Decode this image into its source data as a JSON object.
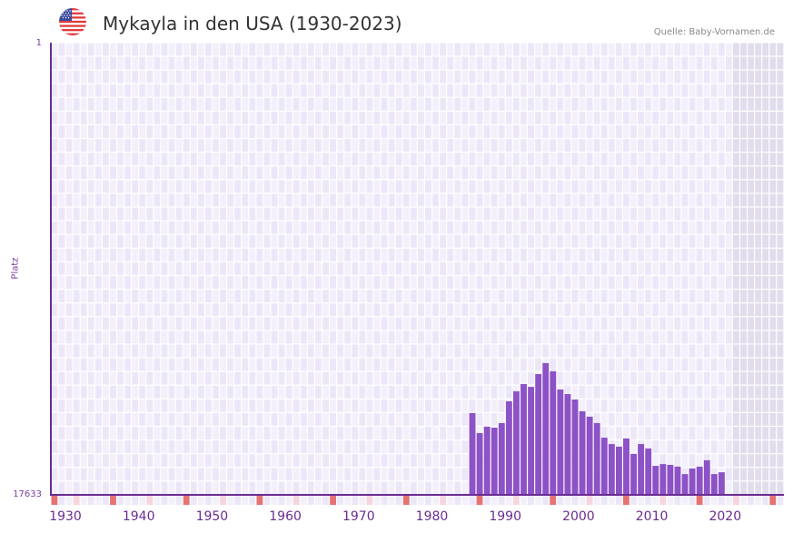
{
  "header": {
    "title": "Mykayla in den USA (1930-2023)",
    "source": "Quelle: Baby-Vornamen.de",
    "flag_icon": "us-flag-icon"
  },
  "colors": {
    "bar": "#8c52c6",
    "axis": "#6a2c91",
    "grid_bg_a": "#f3f0fb",
    "grid_bg_b": "#ece7f8",
    "future_bg": "#e2dded",
    "decade_marker": "#e57373",
    "half_decade_marker": "#f6d5de",
    "label": "#6a2c91"
  },
  "chart_data": {
    "type": "bar",
    "title": "Mykayla in den USA (1930-2023)",
    "xlabel": "",
    "ylabel": "Platz",
    "y_inverted": true,
    "ylim": [
      17633,
      1
    ],
    "y_ticks": [
      "1",
      "17633"
    ],
    "x_ticks": [
      "1930",
      "1940",
      "1950",
      "1960",
      "1970",
      "1980",
      "1990",
      "2000",
      "2010",
      "2020"
    ],
    "xlim": [
      1930,
      2030
    ],
    "grid": true,
    "legend": null,
    "categories": [
      1987,
      1988,
      1989,
      1990,
      1991,
      1992,
      1993,
      1994,
      1995,
      1996,
      1997,
      1998,
      1999,
      2000,
      2001,
      2002,
      2003,
      2004,
      2005,
      2006,
      2007,
      2008,
      2009,
      2010,
      2011,
      2012,
      2013,
      2014,
      2015,
      2016,
      2017,
      2018,
      2019,
      2020,
      2021
    ],
    "values": [
      3190,
      2410,
      2660,
      2620,
      2800,
      3650,
      4040,
      4320,
      4210,
      4710,
      5140,
      4820,
      4110,
      3930,
      3720,
      3260,
      3050,
      2800,
      2230,
      1980,
      1880,
      2200,
      1600,
      1980,
      1810,
      1130,
      1200,
      1170,
      1100,
      810,
      1030,
      1100,
      1350,
      810,
      880
    ],
    "value_meaning": "bar height (higher = better rank); approximate rank = 17633 - value",
    "approx_ranks": [
      14443,
      15223,
      14973,
      15013,
      14833,
      13983,
      13593,
      13313,
      13423,
      12923,
      12493,
      12813,
      13523,
      13703,
      13913,
      14373,
      14583,
      14833,
      15403,
      15653,
      15753,
      15433,
      16033,
      15653,
      15823,
      16503,
      16433,
      16463,
      16533,
      16823,
      16603,
      16533,
      16283,
      16823,
      16753
    ],
    "shaded_future_from": 2023
  }
}
